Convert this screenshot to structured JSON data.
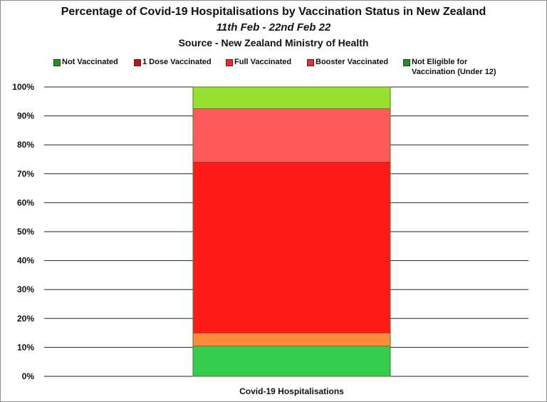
{
  "chart_data": {
    "type": "bar",
    "title": "Percentage of Covid-19 Hospitalisations by Vaccination Status in New Zealand",
    "subtitle": "11th Feb - 22nd Feb 22",
    "source": "Source - New Zealand Ministry of Health",
    "categories": [
      "Covid-19 Hospitalisations"
    ],
    "stacked": true,
    "series": [
      {
        "name": "Not Vaccinated",
        "values": [
          10.5
        ],
        "color": "#33cc4d"
      },
      {
        "name": "1 Dose Vaccinated",
        "values": [
          4.5
        ],
        "color": "#ff8a3a"
      },
      {
        "name": "Full Vaccinated",
        "values": [
          59.0
        ],
        "color": "#ff1a1a"
      },
      {
        "name": "Booster Vaccinated",
        "values": [
          18.5
        ],
        "color": "#ff5a5a"
      },
      {
        "name": "Not Eligible for Vaccination (Under 12)",
        "values": [
          7.5
        ],
        "color": "#99e033"
      }
    ],
    "legend_swatch_colors": [
      "#1a9a1a",
      "#cc1111",
      "#ff2222",
      "#e0303a",
      "#1a9a1a"
    ],
    "yticks": [
      "0%",
      "10%",
      "20%",
      "30%",
      "40%",
      "50%",
      "60%",
      "70%",
      "80%",
      "90%",
      "100%"
    ],
    "ylim": [
      0,
      100
    ],
    "grid": true,
    "legend_position": "top"
  }
}
